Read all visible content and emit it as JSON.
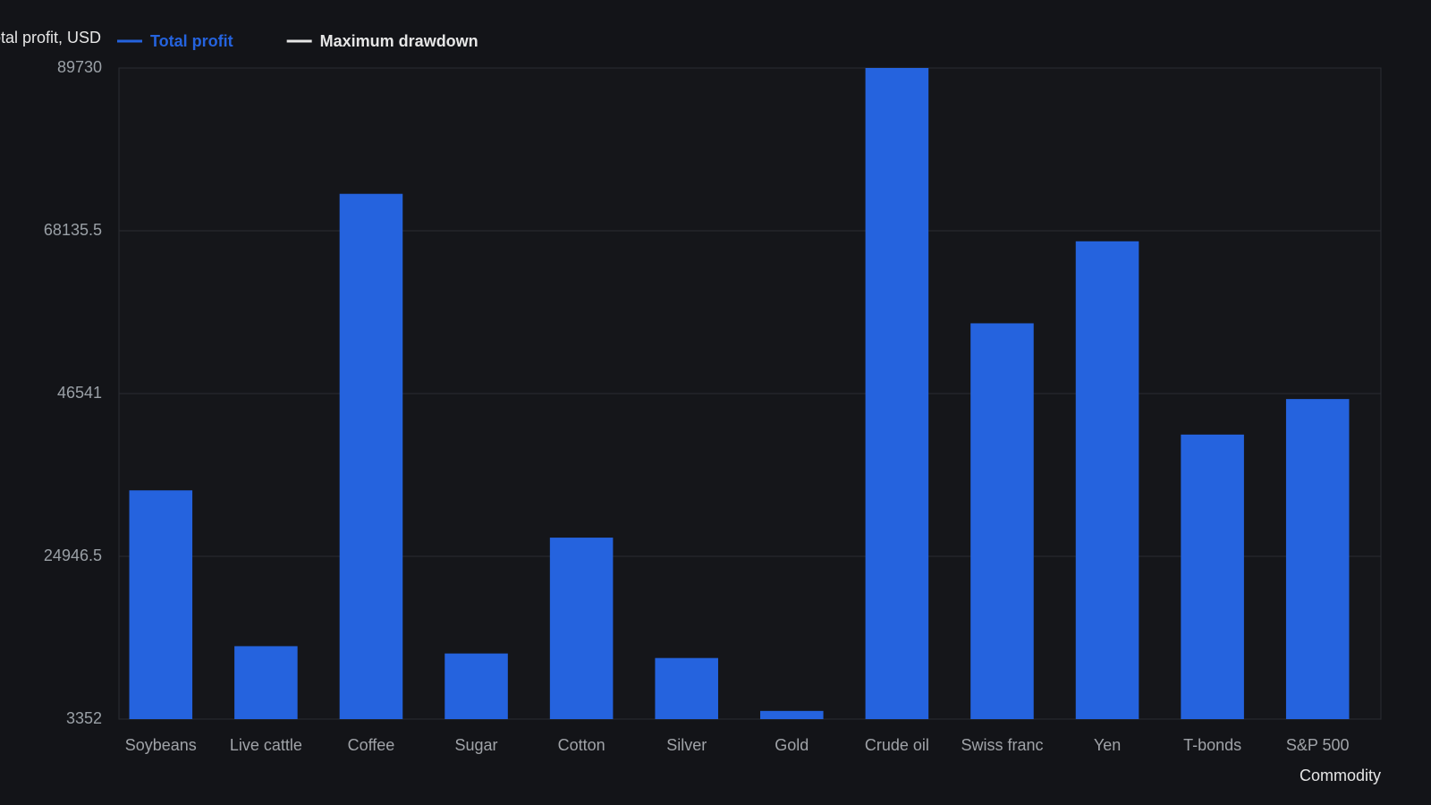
{
  "chart_data": {
    "type": "bar",
    "y_axis_label": "Total profit, USD",
    "x_axis_label": "Commodity",
    "legend": [
      {
        "name": "Total profit",
        "color": "#2563de"
      },
      {
        "name": "Maximum drawdown",
        "color": "#e6e6e6"
      }
    ],
    "categories": [
      "Soybeans",
      "Live cattle",
      "Coffee",
      "Sugar",
      "Cotton",
      "Silver",
      "Gold",
      "Crude oil",
      "Swiss franc",
      "Yen",
      "T-bonds",
      "S&P 500"
    ],
    "values": [
      33700,
      13030,
      73035,
      12060,
      27430,
      11460,
      4440,
      89730,
      55860,
      66740,
      41100,
      45815
    ],
    "color": "#2563de",
    "ylim": [
      3352,
      89730
    ],
    "yticks": [
      3352,
      24946.5,
      46541,
      68135.5,
      89730
    ],
    "grid": true
  }
}
